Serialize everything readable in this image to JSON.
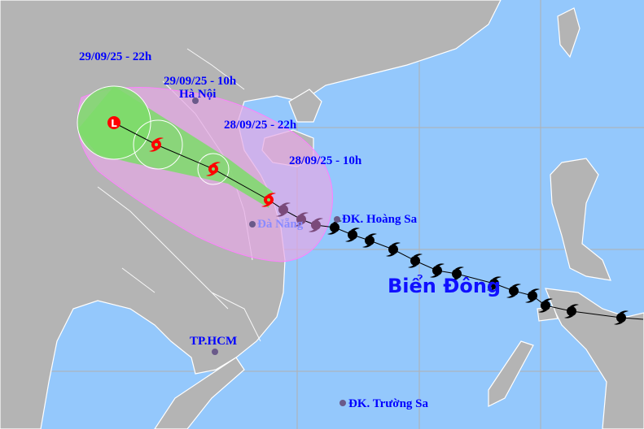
{
  "map": {
    "colors": {
      "sea": "#94c8fc",
      "land": "#b4b4b4",
      "forecast_cone": "#7ddc6a",
      "risk_zone": "#e6a8e6",
      "storm_forecast": "#ff0000",
      "storm_past": "#000000",
      "label": "#0000ff"
    },
    "forecast_labels": [
      "29/09/25 - 22h",
      "29/09/25 - 10h",
      "28/09/25 - 22h",
      "28/09/25 - 10h"
    ],
    "places": {
      "hanoi": "Hà Nội",
      "danang": "Đà Nẵng",
      "hoangsa": "ĐK. Hoàng Sa",
      "hcm": "TP.HCM",
      "truongsa": "ĐK. Trường Sa"
    },
    "sea_name": "Biển Đông",
    "low_pressure_symbol": "L",
    "icons": {
      "storm": "typhoon-icon",
      "low": "low-pressure-icon",
      "place": "city-dot-icon"
    }
  }
}
